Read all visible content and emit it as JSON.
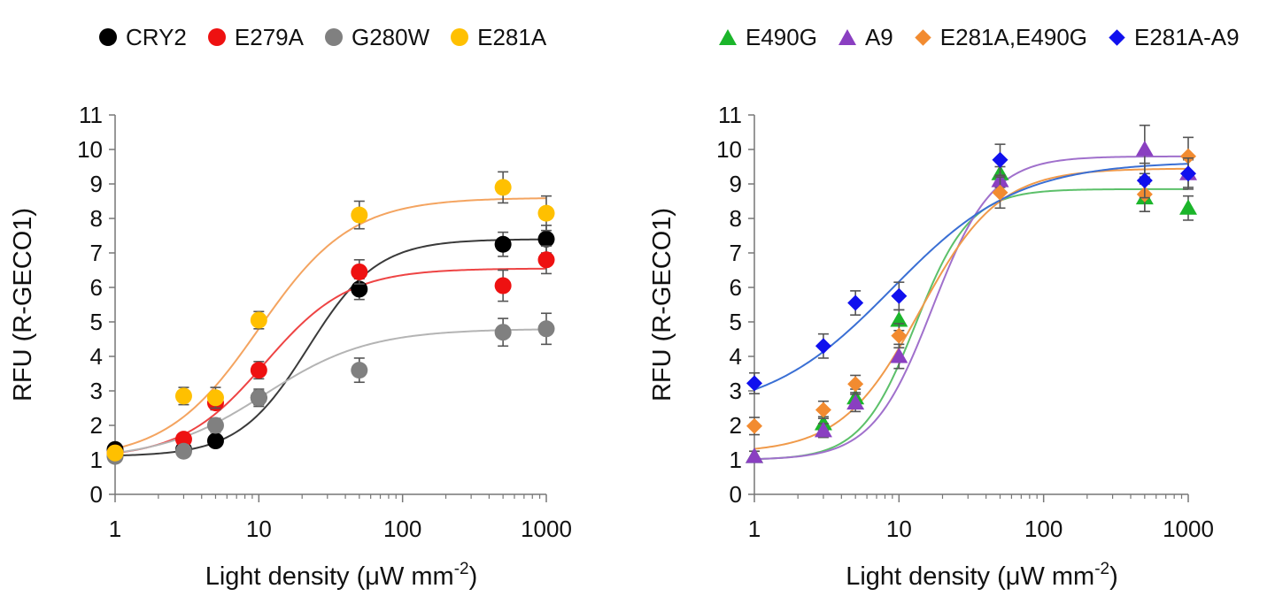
{
  "chart_data": [
    {
      "type": "scatter",
      "title": "",
      "xlabel": "Light density (μW mm-2)",
      "xlabel_main": "Light density (μW mm",
      "xlabel_sup": "-2",
      "xlabel_close": ")",
      "ylabel": "RFU (R-GECO1)",
      "xscale": "log",
      "xlim": [
        1,
        1000
      ],
      "ylim": [
        0,
        11
      ],
      "xticks": [
        1,
        10,
        100,
        1000
      ],
      "xtick_labels": [
        "1",
        "10",
        "100",
        "1000"
      ],
      "yticks": [
        0,
        1,
        2,
        3,
        4,
        5,
        6,
        7,
        8,
        9,
        10,
        11
      ],
      "legend_position": "top",
      "series": [
        {
          "name": "CRY2",
          "color": "#000000",
          "curve_color": "#3a3a3a",
          "marker": "circle",
          "x": [
            1,
            3,
            5,
            10,
            50,
            500,
            1000
          ],
          "y": [
            1.3,
            1.3,
            1.55,
            2.8,
            5.95,
            7.25,
            7.4
          ],
          "err": [
            0.15,
            0.15,
            0.15,
            0.2,
            0.3,
            0.35,
            0.4
          ],
          "fit": {
            "bottom": 1.1,
            "top": 7.4,
            "ec50": 22,
            "hill": 1.8
          }
        },
        {
          "name": "E279A",
          "color": "#ee1111",
          "curve_color": "#ee4444",
          "marker": "circle",
          "x": [
            1,
            3,
            5,
            10,
            50,
            500,
            1000
          ],
          "y": [
            1.2,
            1.6,
            2.65,
            3.6,
            6.45,
            6.05,
            6.8
          ],
          "err": [
            0.15,
            0.15,
            0.2,
            0.25,
            0.35,
            0.45,
            0.4
          ],
          "fit": {
            "bottom": 1.05,
            "top": 6.55,
            "ec50": 11,
            "hill": 1.5
          }
        },
        {
          "name": "G280W",
          "color": "#808080",
          "curve_color": "#b4b4b4",
          "marker": "circle",
          "x": [
            1,
            3,
            5,
            10,
            50,
            500,
            1000
          ],
          "y": [
            1.1,
            1.25,
            2.0,
            2.8,
            3.6,
            4.7,
            4.8
          ],
          "err": [
            0.15,
            0.15,
            0.2,
            0.25,
            0.35,
            0.4,
            0.45
          ],
          "fit": {
            "bottom": 1.0,
            "top": 4.8,
            "ec50": 11,
            "hill": 1.2
          }
        },
        {
          "name": "E281A",
          "color": "#ffc000",
          "curve_color": "#f4a460",
          "marker": "circle",
          "x": [
            1,
            3,
            5,
            10,
            50,
            500,
            1000
          ],
          "y": [
            1.2,
            2.85,
            2.8,
            5.05,
            8.1,
            8.9,
            8.15
          ],
          "err": [
            0.15,
            0.25,
            0.3,
            0.25,
            0.4,
            0.45,
            0.5
          ],
          "fit": {
            "bottom": 1.0,
            "top": 8.6,
            "ec50": 10,
            "hill": 1.35
          }
        }
      ]
    },
    {
      "type": "scatter",
      "title": "",
      "xlabel": "Light density (μW mm-2)",
      "xlabel_main": "Light density (μW mm",
      "xlabel_sup": "-2",
      "xlabel_close": ")",
      "ylabel": "RFU (R-GECO1)",
      "xscale": "log",
      "xlim": [
        1,
        1000
      ],
      "ylim": [
        0,
        11
      ],
      "xticks": [
        1,
        10,
        100,
        1000
      ],
      "xtick_labels": [
        "1",
        "10",
        "100",
        "1000"
      ],
      "yticks": [
        0,
        1,
        2,
        3,
        4,
        5,
        6,
        7,
        8,
        9,
        10,
        11
      ],
      "legend_position": "top",
      "series": [
        {
          "name": "E490G",
          "color": "#1bb52a",
          "curve_color": "#5cc06a",
          "marker": "triangle",
          "x": [
            1,
            3,
            5,
            10,
            50,
            500,
            1000
          ],
          "y": [
            1.1,
            2.05,
            2.8,
            5.05,
            9.3,
            8.6,
            8.3
          ],
          "err": [
            0.15,
            0.2,
            0.25,
            0.3,
            0.4,
            0.4,
            0.35
          ],
          "fit": {
            "bottom": 1.0,
            "top": 8.85,
            "ec50": 13,
            "hill": 2.3
          }
        },
        {
          "name": "A9",
          "color": "#8a3fc1",
          "curve_color": "#a070cc",
          "marker": "triangle",
          "x": [
            1,
            3,
            5,
            10,
            50,
            500,
            1000
          ],
          "y": [
            1.1,
            1.85,
            2.65,
            4.0,
            9.1,
            10.0,
            9.3
          ],
          "err": [
            0.15,
            0.2,
            0.25,
            0.35,
            0.4,
            0.7,
            0.4
          ],
          "fit": {
            "bottom": 1.0,
            "top": 9.8,
            "ec50": 17,
            "hill": 2.1
          }
        },
        {
          "name": "E281A,E490G",
          "color": "#f28b30",
          "curve_color": "#f09a4a",
          "marker": "diamond",
          "x": [
            1,
            3,
            5,
            10,
            50,
            500,
            1000
          ],
          "y": [
            1.98,
            2.45,
            3.2,
            4.6,
            8.75,
            8.7,
            9.8
          ],
          "err": [
            0.25,
            0.25,
            0.25,
            0.35,
            0.45,
            0.5,
            0.55
          ],
          "fit": {
            "bottom": 1.2,
            "top": 9.45,
            "ec50": 14,
            "hill": 1.6
          }
        },
        {
          "name": "E281A-A9",
          "color": "#1010ee",
          "curve_color": "#3a6fd4",
          "marker": "diamond",
          "x": [
            1,
            3,
            5,
            10,
            50,
            500,
            1000
          ],
          "y": [
            3.22,
            4.3,
            5.55,
            5.75,
            9.7,
            9.1,
            9.3
          ],
          "err": [
            0.3,
            0.35,
            0.35,
            0.4,
            0.45,
            0.5,
            0.45
          ],
          "fit": {
            "bottom": 2.3,
            "top": 9.65,
            "ec50": 9,
            "hill": 1.0
          }
        }
      ]
    }
  ]
}
